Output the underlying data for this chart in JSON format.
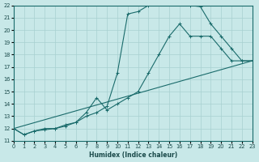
{
  "xlabel": "Humidex (Indice chaleur)",
  "bg_color": "#c8e8e8",
  "grid_color": "#a8d0d0",
  "line_color": "#1a6b6b",
  "xlim": [
    0,
    23
  ],
  "ylim": [
    11,
    22
  ],
  "xticks": [
    0,
    1,
    2,
    3,
    4,
    5,
    6,
    7,
    8,
    9,
    10,
    11,
    12,
    13,
    14,
    15,
    16,
    17,
    18,
    19,
    20,
    21,
    22,
    23
  ],
  "yticks": [
    11,
    12,
    13,
    14,
    15,
    16,
    17,
    18,
    19,
    20,
    21,
    22
  ],
  "line1_x": [
    0,
    1,
    2,
    3,
    4,
    5,
    6,
    7,
    8,
    9,
    10,
    11,
    12,
    13,
    14,
    15,
    16,
    17,
    18,
    19,
    20,
    21,
    22,
    23
  ],
  "line1_y": [
    12,
    11.5,
    11.8,
    11.9,
    12.0,
    12.3,
    12.5,
    13.0,
    13.3,
    13.8,
    16.5,
    21.3,
    21.5,
    22.0,
    22.2,
    22.2,
    22.2,
    22.0,
    21.9,
    20.5,
    19.5,
    18.5,
    17.5,
    17.5
  ],
  "line2_x": [
    0,
    1,
    2,
    3,
    4,
    5,
    6,
    7,
    8,
    9,
    10,
    11,
    12,
    13,
    14,
    15,
    16,
    17,
    18,
    19,
    20,
    21,
    22,
    23
  ],
  "line2_y": [
    12,
    11.5,
    11.8,
    12.0,
    12.0,
    12.2,
    12.5,
    13.3,
    14.5,
    13.5,
    14.0,
    14.5,
    15.0,
    16.5,
    18.0,
    19.5,
    20.5,
    19.5,
    19.5,
    19.5,
    18.5,
    17.5,
    17.5,
    17.5
  ],
  "line3_x": [
    0,
    23
  ],
  "line3_y": [
    12,
    17.5
  ]
}
